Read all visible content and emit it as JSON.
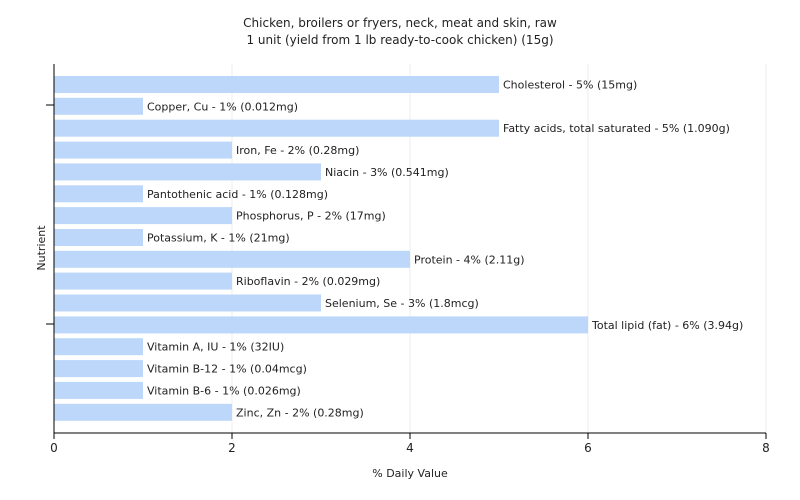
{
  "title": "Chicken, broilers or fryers, neck, meat and skin, raw",
  "subtitle": "1 unit (yield from 1 lb ready-to-cook chicken) (15g)",
  "colors": {
    "bar": "#bcd7f9",
    "axis": "#000000",
    "plot_bg": "#ffffff",
    "grid": "#eeeeee"
  },
  "chart_data": {
    "type": "bar",
    "orientation": "horizontal",
    "xlabel": "% Daily Value",
    "ylabel": "Nutrient",
    "xlim": [
      0,
      8
    ],
    "xticks": [
      0,
      2,
      4,
      6,
      8
    ],
    "grid": true,
    "categories": [
      "Cholesterol",
      "Copper, Cu",
      "Fatty acids, total saturated",
      "Iron, Fe",
      "Niacin",
      "Pantothenic acid",
      "Phosphorus, P",
      "Potassium, K",
      "Protein",
      "Riboflavin",
      "Selenium, Se",
      "Total lipid (fat)",
      "Vitamin A, IU",
      "Vitamin B-12",
      "Vitamin B-6",
      "Zinc, Zn"
    ],
    "values": [
      5,
      1,
      5,
      2,
      3,
      1,
      2,
      1,
      4,
      2,
      3,
      6,
      1,
      1,
      1,
      2
    ],
    "labels": [
      "Cholesterol - 5% (15mg)",
      "Copper, Cu - 1% (0.012mg)",
      "Fatty acids, total saturated - 5% (1.090g)",
      "Iron, Fe - 2% (0.28mg)",
      "Niacin - 3% (0.541mg)",
      "Pantothenic acid - 1% (0.128mg)",
      "Phosphorus, P - 2% (17mg)",
      "Potassium, K - 1% (21mg)",
      "Protein - 4% (2.11g)",
      "Riboflavin - 2% (0.029mg)",
      "Selenium, Se - 3% (1.8mcg)",
      "Total lipid (fat) - 6% (3.94g)",
      "Vitamin A, IU - 1% (32IU)",
      "Vitamin B-12 - 1% (0.04mcg)",
      "Vitamin B-6 - 1% (0.026mg)",
      "Zinc, Zn - 2% (0.28mg)"
    ]
  }
}
